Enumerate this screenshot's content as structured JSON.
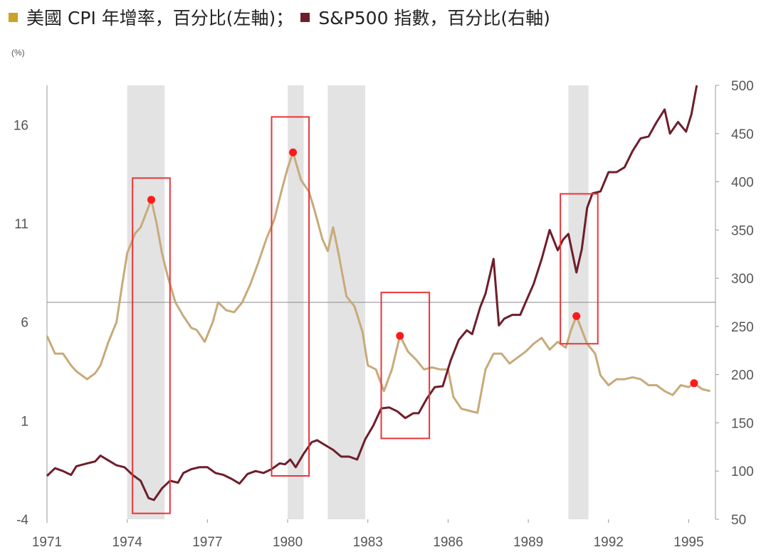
{
  "legend": {
    "cpi_label": "美國 CPI 年增率，百分比(左軸)；",
    "sp_label": "S&P500 指數，百分比(右軸)"
  },
  "colors": {
    "cpi": "#c8aa7a",
    "sp500": "#6e1e2a",
    "legend_cpi": "#c9a227",
    "legend_sp": "#6e1e2a",
    "recession": "#e3e3e3",
    "box": "#e8363a",
    "dot": "#ff1a1a"
  },
  "chart_data": {
    "type": "line",
    "left_unit": "(%)",
    "left_axis": {
      "min": -4,
      "max": 18,
      "ticks": [
        "16",
        "11",
        "6",
        "1",
        "-4"
      ]
    },
    "right_axis": {
      "min": 50,
      "max": 500,
      "ticks": [
        "500",
        "450",
        "400",
        "350",
        "300",
        "250",
        "200",
        "150",
        "100",
        "50"
      ]
    },
    "x_axis": {
      "min": 1971,
      "max": 1996,
      "ticks": [
        "1971",
        "1974",
        "1977",
        "1980",
        "1983",
        "1986",
        "1989",
        "1992",
        "1995"
      ]
    },
    "reference_line": 7,
    "recessions": [
      [
        1974.0,
        1975.4
      ],
      [
        1980.0,
        1980.6
      ],
      [
        1981.5,
        1982.9
      ],
      [
        1990.5,
        1991.25
      ]
    ],
    "highlight_boxes": [
      {
        "x": [
          1974.2,
          1975.6
        ],
        "y_left": [
          -3.7,
          13.3
        ]
      },
      {
        "x": [
          1979.4,
          1980.8
        ],
        "y_left": [
          -1.8,
          16.4
        ]
      },
      {
        "x": [
          1983.5,
          1985.3
        ],
        "y_left": [
          0.1,
          7.5
        ]
      },
      {
        "x": [
          1990.2,
          1991.6
        ],
        "y_left": [
          4.9,
          12.5
        ]
      }
    ],
    "peaks": [
      {
        "x": 1974.9,
        "y": 12.2
      },
      {
        "x": 1980.2,
        "y": 14.6
      },
      {
        "x": 1984.2,
        "y": 5.3
      },
      {
        "x": 1990.8,
        "y": 6.3
      },
      {
        "x": 1995.2,
        "y": 2.9
      }
    ],
    "series": [
      {
        "name": "美國 CPI 年增率",
        "axis": "left",
        "points": [
          [
            1971.0,
            5.3
          ],
          [
            1971.3,
            4.4
          ],
          [
            1971.6,
            4.4
          ],
          [
            1971.9,
            3.8
          ],
          [
            1972.1,
            3.5
          ],
          [
            1972.5,
            3.1
          ],
          [
            1972.8,
            3.4
          ],
          [
            1973.0,
            3.8
          ],
          [
            1973.3,
            5.0
          ],
          [
            1973.6,
            6.0
          ],
          [
            1973.8,
            7.8
          ],
          [
            1974.0,
            9.5
          ],
          [
            1974.3,
            10.5
          ],
          [
            1974.5,
            10.8
          ],
          [
            1974.7,
            11.5
          ],
          [
            1974.9,
            12.2
          ],
          [
            1975.1,
            11.0
          ],
          [
            1975.3,
            9.5
          ],
          [
            1975.5,
            8.4
          ],
          [
            1975.8,
            7.0
          ],
          [
            1976.1,
            6.3
          ],
          [
            1976.4,
            5.7
          ],
          [
            1976.6,
            5.6
          ],
          [
            1976.9,
            5.0
          ],
          [
            1977.2,
            6.0
          ],
          [
            1977.4,
            7.0
          ],
          [
            1977.7,
            6.6
          ],
          [
            1978.0,
            6.5
          ],
          [
            1978.3,
            7.0
          ],
          [
            1978.6,
            7.9
          ],
          [
            1978.9,
            9.0
          ],
          [
            1979.2,
            10.2
          ],
          [
            1979.5,
            11.2
          ],
          [
            1979.8,
            12.8
          ],
          [
            1980.0,
            13.8
          ],
          [
            1980.2,
            14.6
          ],
          [
            1980.5,
            13.2
          ],
          [
            1980.8,
            12.6
          ],
          [
            1981.0,
            11.7
          ],
          [
            1981.3,
            10.2
          ],
          [
            1981.5,
            9.6
          ],
          [
            1981.7,
            10.8
          ],
          [
            1981.9,
            9.5
          ],
          [
            1982.2,
            7.3
          ],
          [
            1982.5,
            6.8
          ],
          [
            1982.8,
            5.5
          ],
          [
            1983.0,
            3.8
          ],
          [
            1983.3,
            3.6
          ],
          [
            1983.6,
            2.5
          ],
          [
            1983.9,
            3.6
          ],
          [
            1984.2,
            5.3
          ],
          [
            1984.5,
            4.5
          ],
          [
            1984.8,
            4.1
          ],
          [
            1985.1,
            3.6
          ],
          [
            1985.4,
            3.7
          ],
          [
            1985.7,
            3.6
          ],
          [
            1986.0,
            3.6
          ],
          [
            1986.2,
            2.2
          ],
          [
            1986.5,
            1.6
          ],
          [
            1986.8,
            1.5
          ],
          [
            1987.1,
            1.4
          ],
          [
            1987.4,
            3.6
          ],
          [
            1987.7,
            4.4
          ],
          [
            1988.0,
            4.4
          ],
          [
            1988.3,
            3.9
          ],
          [
            1988.6,
            4.2
          ],
          [
            1988.9,
            4.5
          ],
          [
            1989.2,
            4.9
          ],
          [
            1989.5,
            5.2
          ],
          [
            1989.8,
            4.6
          ],
          [
            1990.1,
            5.0
          ],
          [
            1990.4,
            4.7
          ],
          [
            1990.6,
            5.6
          ],
          [
            1990.8,
            6.3
          ],
          [
            1991.0,
            5.6
          ],
          [
            1991.2,
            4.9
          ],
          [
            1991.5,
            4.4
          ],
          [
            1991.7,
            3.3
          ],
          [
            1992.0,
            2.8
          ],
          [
            1992.3,
            3.1
          ],
          [
            1992.6,
            3.1
          ],
          [
            1992.9,
            3.2
          ],
          [
            1993.2,
            3.1
          ],
          [
            1993.5,
            2.8
          ],
          [
            1993.8,
            2.8
          ],
          [
            1994.1,
            2.5
          ],
          [
            1994.4,
            2.3
          ],
          [
            1994.7,
            2.8
          ],
          [
            1995.0,
            2.7
          ],
          [
            1995.2,
            2.9
          ],
          [
            1995.5,
            2.6
          ],
          [
            1995.8,
            2.5
          ]
        ]
      },
      {
        "name": "S&P500 指數",
        "axis": "right",
        "points": [
          [
            1971.0,
            95
          ],
          [
            1971.3,
            103
          ],
          [
            1971.6,
            100
          ],
          [
            1971.9,
            96
          ],
          [
            1972.1,
            105
          ],
          [
            1972.5,
            108
          ],
          [
            1972.8,
            110
          ],
          [
            1973.0,
            116
          ],
          [
            1973.3,
            111
          ],
          [
            1973.6,
            106
          ],
          [
            1973.9,
            104
          ],
          [
            1974.2,
            96
          ],
          [
            1974.5,
            90
          ],
          [
            1974.8,
            72
          ],
          [
            1975.0,
            70
          ],
          [
            1975.3,
            82
          ],
          [
            1975.6,
            90
          ],
          [
            1975.9,
            88
          ],
          [
            1976.1,
            98
          ],
          [
            1976.4,
            102
          ],
          [
            1976.7,
            104
          ],
          [
            1977.0,
            104
          ],
          [
            1977.3,
            98
          ],
          [
            1977.6,
            96
          ],
          [
            1977.9,
            92
          ],
          [
            1978.2,
            87
          ],
          [
            1978.5,
            97
          ],
          [
            1978.8,
            100
          ],
          [
            1979.1,
            98
          ],
          [
            1979.4,
            102
          ],
          [
            1979.7,
            108
          ],
          [
            1979.9,
            107
          ],
          [
            1980.1,
            112
          ],
          [
            1980.3,
            104
          ],
          [
            1980.6,
            118
          ],
          [
            1980.9,
            130
          ],
          [
            1981.1,
            132
          ],
          [
            1981.4,
            127
          ],
          [
            1981.7,
            122
          ],
          [
            1982.0,
            115
          ],
          [
            1982.3,
            115
          ],
          [
            1982.6,
            112
          ],
          [
            1982.9,
            133
          ],
          [
            1983.2,
            147
          ],
          [
            1983.5,
            165
          ],
          [
            1983.8,
            166
          ],
          [
            1984.1,
            162
          ],
          [
            1984.4,
            155
          ],
          [
            1984.7,
            160
          ],
          [
            1984.9,
            160
          ],
          [
            1985.2,
            175
          ],
          [
            1985.5,
            187
          ],
          [
            1985.8,
            188
          ],
          [
            1986.1,
            215
          ],
          [
            1986.4,
            236
          ],
          [
            1986.7,
            246
          ],
          [
            1986.9,
            242
          ],
          [
            1987.2,
            270
          ],
          [
            1987.4,
            284
          ],
          [
            1987.7,
            320
          ],
          [
            1987.9,
            251
          ],
          [
            1988.1,
            258
          ],
          [
            1988.4,
            262
          ],
          [
            1988.7,
            262
          ],
          [
            1988.9,
            275
          ],
          [
            1989.2,
            294
          ],
          [
            1989.5,
            320
          ],
          [
            1989.8,
            350
          ],
          [
            1990.1,
            329
          ],
          [
            1990.3,
            340
          ],
          [
            1990.5,
            346
          ],
          [
            1990.8,
            306
          ],
          [
            1991.0,
            330
          ],
          [
            1991.2,
            373
          ],
          [
            1991.4,
            388
          ],
          [
            1991.7,
            390
          ],
          [
            1992.0,
            410
          ],
          [
            1992.3,
            410
          ],
          [
            1992.6,
            415
          ],
          [
            1992.9,
            432
          ],
          [
            1993.2,
            445
          ],
          [
            1993.5,
            447
          ],
          [
            1993.8,
            462
          ],
          [
            1994.1,
            475
          ],
          [
            1994.3,
            450
          ],
          [
            1994.6,
            462
          ],
          [
            1994.9,
            452
          ],
          [
            1995.1,
            470
          ],
          [
            1995.3,
            500
          ]
        ]
      }
    ]
  }
}
